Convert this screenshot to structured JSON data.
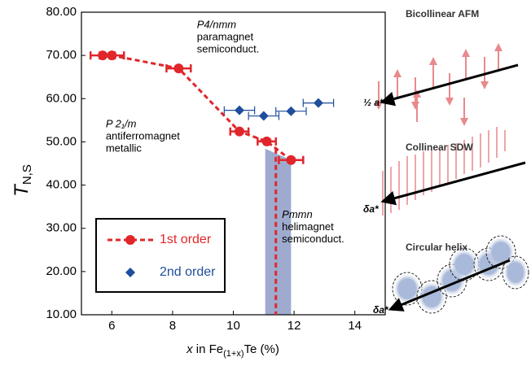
{
  "chart_data": {
    "type": "scatter",
    "y_label": {
      "main": "T",
      "sub": "N,S"
    },
    "x_label": {
      "pre": "x",
      "mid": " in Fe",
      "sub": "(1+x)",
      "post": "Te (%)"
    },
    "xlim": [
      5,
      15
    ],
    "ylim": [
      10,
      80
    ],
    "xticks": [
      6,
      8,
      10,
      12,
      14
    ],
    "yticks": [
      {
        "value": 10,
        "label": "10.00"
      },
      {
        "value": 20,
        "label": "20.00"
      },
      {
        "value": 30,
        "label": "30.00"
      },
      {
        "value": 40,
        "label": "40.00"
      },
      {
        "value": 50,
        "label": "50.00"
      },
      {
        "value": 60,
        "label": "60.00"
      },
      {
        "value": 70,
        "label": "70.00"
      },
      {
        "value": 80,
        "label": "80.00"
      }
    ],
    "series": [
      {
        "name": "1st order",
        "color": "#e0262b",
        "marker": "circle",
        "line_style": "dashed",
        "x": [
          5.7,
          6.0,
          8.2,
          10.2,
          11.1,
          11.9
        ],
        "values": [
          70,
          70,
          67,
          52.4,
          50.1,
          45.8
        ],
        "xerr": [
          0.4,
          0.4,
          0.4,
          0.3,
          0.3,
          0.4
        ]
      },
      {
        "name": "2nd order",
        "color": "#1f4e9c",
        "marker": "diamond",
        "x": [
          10.2,
          11.0,
          11.9,
          12.8
        ],
        "values": [
          57.3,
          56,
          57.1,
          59
        ],
        "xerr": [
          0.5,
          0.5,
          0.5,
          0.5
        ]
      }
    ],
    "boundary": {
      "x": 11.4,
      "shade_x": [
        11.05,
        11.9
      ],
      "shade_top": [
        48.4,
        45.8
      ],
      "shade_color": "#8d9cc7"
    },
    "annotations": [
      {
        "lines": [
          "P4/nmm",
          "paramagnet",
          "semiconduct."
        ],
        "x": 8.8,
        "y": 77
      },
      {
        "lines": [
          "P 2₁/m",
          "antiferromagnet",
          "metallic"
        ],
        "x": 5.8,
        "y": 54
      },
      {
        "lines": [
          "Pmmn",
          "helimagnet",
          "semiconduct."
        ],
        "x": 11.6,
        "y": 33
      }
    ],
    "legend_corner": "lower left",
    "schematics": [
      {
        "title": "Bicollinear AFM",
        "axis_label": "½ a*"
      },
      {
        "title": "Collinear SDW",
        "axis_label": "δa*"
      },
      {
        "title": "Circular helix",
        "axis_label": "δa*"
      }
    ]
  }
}
